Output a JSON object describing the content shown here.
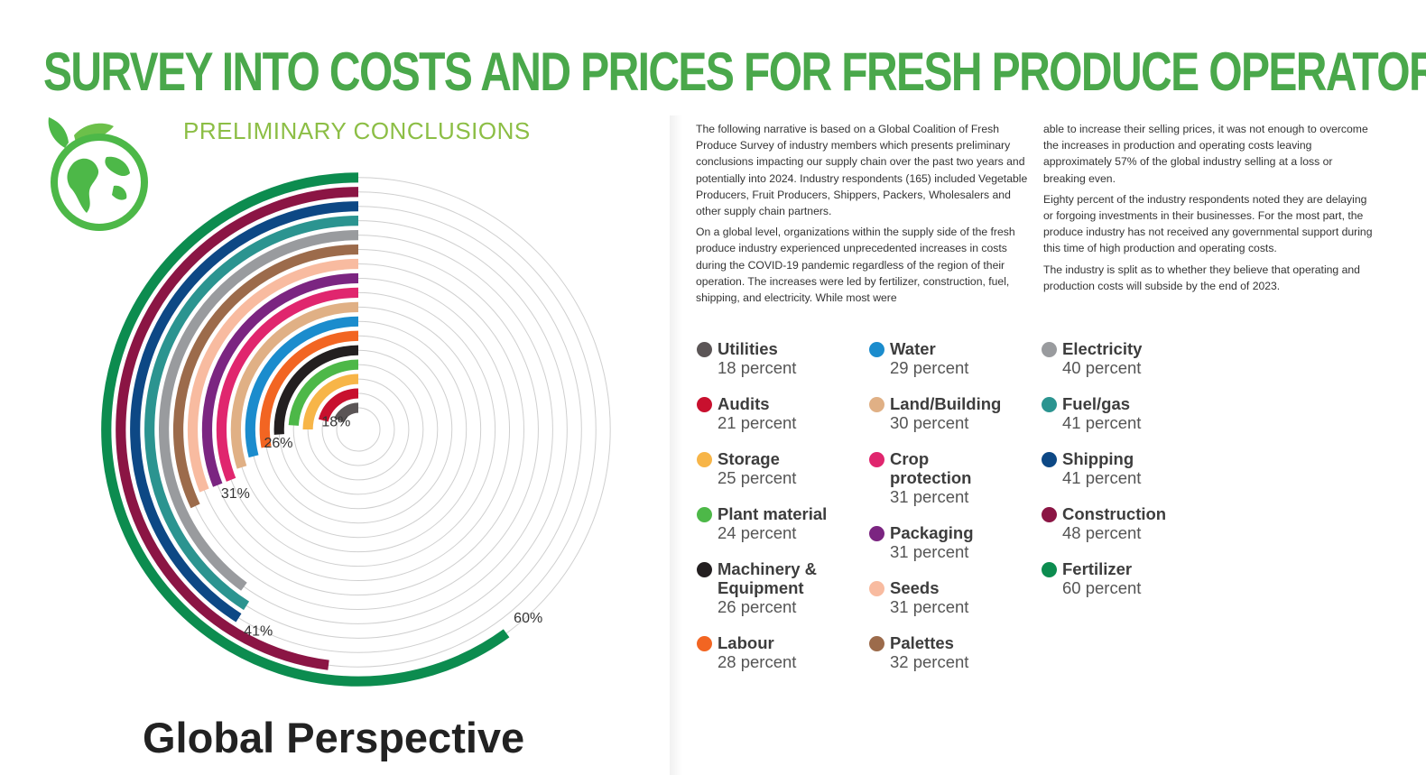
{
  "header": {
    "title": "SURVEY INTO COSTS AND PRICES FOR FRESH PRODUCE OPERATORS",
    "subtitle": "PRELIMINARY CONCLUSIONS"
  },
  "footer": {
    "title": "Global Perspective"
  },
  "narrative": {
    "col1": [
      "The following narrative is based on a Global Coalition of Fresh Produce Survey of industry members which presents preliminary conclusions impacting our supply chain over the past two years and potentially into 2024. Industry respondents (165) included Vegetable Producers, Fruit Producers, Shippers, Packers, Wholesalers and other supply chain partners.",
      "On a global level, organizations within the supply side of the fresh produce industry experienced unprecedented increases in costs during the COVID-19 pandemic regardless of the region of their operation. The increases were led by fertilizer, construction, fuel, shipping, and electricity. While most were"
    ],
    "col2": [
      "able to increase their selling prices, it was not enough to overcome the increases in production and operating costs leaving approximately 57% of the global industry selling at a loss or breaking even.",
      "Eighty percent of the industry respondents noted they are delaying or forgoing investments in their businesses. For the most part, the produce industry has not received any governmental support during this time of high production and operating costs.",
      "The industry is split as to whether they believe that operating and production costs will subside by the end of 2023."
    ]
  },
  "legend": {
    "columns": [
      [
        {
          "name": "Utilities",
          "pct": "18 percent",
          "color": "#5b5556"
        },
        {
          "name": "Audits",
          "pct": "21 percent",
          "color": "#c8102e"
        },
        {
          "name": "Storage",
          "pct": "25 percent",
          "color": "#f7b548"
        },
        {
          "name": "Plant material",
          "pct": "24 percent",
          "color": "#4db848"
        },
        {
          "name": "Machinery & Equipment",
          "pct": "26 percent",
          "color": "#231f20"
        },
        {
          "name": "Labour",
          "pct": "28 percent",
          "color": "#f26522"
        }
      ],
      [
        {
          "name": "Water",
          "pct": "29 percent",
          "color": "#1b8ccd"
        },
        {
          "name": "Land/Building",
          "pct": "30 percent",
          "color": "#e0b085"
        },
        {
          "name": "Crop protection",
          "pct": "31 percent",
          "color": "#e0266e"
        },
        {
          "name": "Packaging",
          "pct": "31 percent",
          "color": "#7b2581"
        },
        {
          "name": "Seeds",
          "pct": "31 percent",
          "color": "#f8bba0"
        },
        {
          "name": "Palettes",
          "pct": "32 percent",
          "color": "#9c6b4b"
        }
      ],
      [
        {
          "name": "Electricity",
          "pct": "40 percent",
          "color": "#999b9e"
        },
        {
          "name": "Fuel/gas",
          "pct": "41 percent",
          "color": "#2b9490"
        },
        {
          "name": "Shipping",
          "pct": "41 percent",
          "color": "#0d4885"
        },
        {
          "name": "Construction",
          "pct": "48 percent",
          "color": "#8b1544"
        },
        {
          "name": "Fertilizer",
          "pct": "60 percent",
          "color": "#0c8c4f"
        }
      ]
    ]
  },
  "chart_data": {
    "type": "radial-bar",
    "value_unit": "percent",
    "max": 100,
    "categories": [
      "Utilities",
      "Audits",
      "Storage",
      "Plant material",
      "Machinery & Equipment",
      "Labour",
      "Water",
      "Land/Building",
      "Crop protection",
      "Packaging",
      "Seeds",
      "Palettes",
      "Electricity",
      "Fuel/gas",
      "Shipping",
      "Construction",
      "Fertilizer"
    ],
    "values": [
      18,
      21,
      25,
      24,
      26,
      28,
      29,
      30,
      31,
      31,
      31,
      32,
      40,
      41,
      41,
      48,
      60
    ],
    "colors": [
      "#5b5556",
      "#c8102e",
      "#f7b548",
      "#4db848",
      "#231f20",
      "#f26522",
      "#1b8ccd",
      "#e0b085",
      "#e0266e",
      "#7b2581",
      "#f8bba0",
      "#9c6b4b",
      "#999b9e",
      "#2b9490",
      "#0d4885",
      "#8b1544",
      "#0c8c4f"
    ],
    "labels": [
      {
        "text": "18%",
        "index": 0
      },
      {
        "text": "26%",
        "index": 4
      },
      {
        "text": "31%",
        "index": 8
      },
      {
        "text": "41%",
        "index": 14
      },
      {
        "text": "60%",
        "index": 16
      }
    ]
  }
}
